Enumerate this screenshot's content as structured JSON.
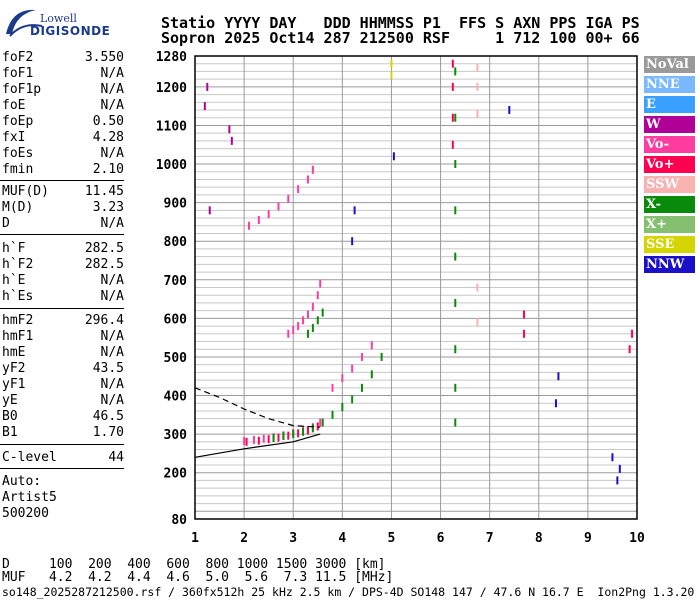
{
  "logo": {
    "word": "Lowell",
    "brand": "DIGISONDE"
  },
  "header": {
    "line1": "Statio YYYY DAY   DDD HHMMSS P1  FFS S AXN PPS IGA PS",
    "line2": "Sopron 2025 Oct14 287 212500 RSF     1 712 100 00+ 66"
  },
  "params": [
    {
      "label": "foF2",
      "value": "3.550"
    },
    {
      "label": "foF1",
      "value": "N/A"
    },
    {
      "label": "foF1p",
      "value": "N/A"
    },
    {
      "label": "foE",
      "value": "N/A"
    },
    {
      "label": "foEp",
      "value": "0.50"
    },
    {
      "label": "fxI",
      "value": "4.28"
    },
    {
      "label": "foEs",
      "value": "N/A"
    },
    {
      "label": "fmin",
      "value": "2.10"
    },
    {
      "label": "MUF(D)",
      "value": "11.45"
    },
    {
      "label": "M(D)",
      "value": "3.23"
    },
    {
      "label": "D",
      "value": "N/A"
    },
    {
      "label": "h`F",
      "value": "282.5"
    },
    {
      "label": "h`F2",
      "value": "282.5"
    },
    {
      "label": "h`E",
      "value": "N/A"
    },
    {
      "label": "h`Es",
      "value": "N/A"
    },
    {
      "label": "hmF2",
      "value": "296.4"
    },
    {
      "label": "hmF1",
      "value": "N/A"
    },
    {
      "label": "hmE",
      "value": "N/A"
    },
    {
      "label": "yF2",
      "value": "43.5"
    },
    {
      "label": "yF1",
      "value": "N/A"
    },
    {
      "label": "yE",
      "value": "N/A"
    },
    {
      "label": "B0",
      "value": "46.5"
    },
    {
      "label": "B1",
      "value": "1.70"
    },
    {
      "label": "C-level",
      "value": "44"
    }
  ],
  "auto": {
    "line1": "Auto:",
    "line2": "Artist5",
    "line3": "500200"
  },
  "legend": [
    {
      "label": "NoVal",
      "color": "#9a9a9a"
    },
    {
      "label": "NNE",
      "color": "#7ab8ff"
    },
    {
      "label": "E",
      "color": "#3aa0ff"
    },
    {
      "label": "W",
      "color": "#b00098"
    },
    {
      "label": "Vo-",
      "color": "#ff3da0"
    },
    {
      "label": "Vo+",
      "color": "#ff0050"
    },
    {
      "label": "SSW",
      "color": "#f7b2b2"
    },
    {
      "label": "X-",
      "color": "#0a8a0a"
    },
    {
      "label": "X+",
      "color": "#84c070"
    },
    {
      "label": "SSE",
      "color": "#d4d400"
    },
    {
      "label": "NNW",
      "color": "#1a10c8"
    }
  ],
  "footer": {
    "d_row": "D     100  200  400  600  800 1000 1500 3000 [km]",
    "muf_row": "MUF   4.2  4.2  4.4  4.6  5.0  5.6  7.3 11.5 [MHz]",
    "info": "so148_2025287212500.rsf / 360fx512h 25 kHz 2.5 km / DPS-4D SO148 147 / 47.6 N 16.7 E  Ion2Png 1.3.20"
  },
  "chart_data": {
    "type": "scatter",
    "title": "",
    "xlabel": "",
    "ylabel": "",
    "xlim": [
      1,
      10
    ],
    "ylim": [
      80,
      1280
    ],
    "x_ticks": [
      1,
      2,
      3,
      4,
      5,
      6,
      7,
      8,
      9,
      10
    ],
    "y_ticks": [
      80,
      200,
      300,
      400,
      500,
      600,
      700,
      800,
      900,
      1000,
      1100,
      1200,
      1280
    ],
    "grid": true,
    "legend_position": "right",
    "series": [
      {
        "color_key": "Vo-",
        "points": [
          [
            2.0,
            282
          ],
          [
            2.2,
            285
          ],
          [
            2.4,
            288
          ],
          [
            2.6,
            292
          ],
          [
            2.8,
            297
          ],
          [
            3.0,
            303
          ],
          [
            3.2,
            310
          ],
          [
            3.4,
            318
          ],
          [
            3.55,
            330
          ]
        ]
      },
      {
        "color_key": "Vo+",
        "points": [
          [
            2.05,
            280
          ],
          [
            2.3,
            283
          ],
          [
            2.5,
            287
          ],
          [
            2.7,
            291
          ],
          [
            2.9,
            296
          ],
          [
            3.1,
            302
          ],
          [
            3.3,
            309
          ],
          [
            3.5,
            320
          ]
        ]
      },
      {
        "color_key": "X-",
        "points": [
          [
            2.6,
            290
          ],
          [
            2.8,
            295
          ],
          [
            3.0,
            300
          ],
          [
            3.2,
            306
          ],
          [
            3.4,
            315
          ],
          [
            3.6,
            330
          ]
        ]
      },
      {
        "color_key": "Vo-",
        "points": [
          [
            2.9,
            560
          ],
          [
            3.0,
            570
          ],
          [
            3.1,
            580
          ],
          [
            3.2,
            595
          ],
          [
            3.3,
            610
          ],
          [
            3.4,
            630
          ],
          [
            3.5,
            660
          ],
          [
            3.55,
            690
          ]
        ]
      },
      {
        "color_key": "X-",
        "points": [
          [
            3.3,
            560
          ],
          [
            3.4,
            575
          ],
          [
            3.5,
            595
          ],
          [
            3.6,
            615
          ]
        ]
      },
      {
        "color_key": "Vo-",
        "points": [
          [
            2.1,
            840
          ],
          [
            2.3,
            855
          ],
          [
            2.5,
            870
          ],
          [
            2.7,
            890
          ],
          [
            2.9,
            910
          ],
          [
            3.1,
            935
          ],
          [
            3.3,
            960
          ],
          [
            3.4,
            985
          ]
        ]
      },
      {
        "color_key": "X-",
        "points": [
          [
            3.8,
            350
          ],
          [
            4.0,
            370
          ],
          [
            4.2,
            390
          ],
          [
            4.4,
            420
          ],
          [
            4.6,
            455
          ],
          [
            4.8,
            500
          ]
        ]
      },
      {
        "color_key": "Vo-",
        "points": [
          [
            3.8,
            420
          ],
          [
            4.0,
            445
          ],
          [
            4.2,
            470
          ],
          [
            4.4,
            500
          ],
          [
            4.6,
            530
          ]
        ]
      },
      {
        "color_key": "X-",
        "points": [
          [
            6.3,
            330
          ],
          [
            6.3,
            420
          ],
          [
            6.3,
            520
          ],
          [
            6.3,
            640
          ],
          [
            6.3,
            760
          ],
          [
            6.3,
            880
          ],
          [
            6.3,
            1000
          ],
          [
            6.3,
            1120
          ],
          [
            6.3,
            1240
          ]
        ]
      },
      {
        "color_key": "Vo+",
        "points": [
          [
            6.25,
            1050
          ],
          [
            6.25,
            1120
          ],
          [
            6.25,
            1200
          ],
          [
            6.25,
            1260
          ]
        ]
      },
      {
        "color_key": "SSW",
        "points": [
          [
            6.75,
            590
          ],
          [
            6.75,
            680
          ],
          [
            6.75,
            1130
          ],
          [
            6.75,
            1200
          ],
          [
            6.75,
            1250
          ]
        ]
      },
      {
        "color_key": "NNW",
        "points": [
          [
            5.05,
            1020
          ],
          [
            4.2,
            800
          ],
          [
            4.25,
            880
          ],
          [
            7.4,
            1140
          ],
          [
            8.35,
            380
          ],
          [
            8.4,
            450
          ],
          [
            9.5,
            240
          ],
          [
            9.6,
            180
          ],
          [
            9.65,
            210
          ]
        ]
      },
      {
        "color_key": "W",
        "points": [
          [
            1.2,
            1150
          ],
          [
            1.25,
            1200
          ],
          [
            1.3,
            880
          ],
          [
            1.7,
            1090
          ],
          [
            1.75,
            1060
          ]
        ]
      },
      {
        "color_key": "Vo+",
        "points": [
          [
            7.7,
            560
          ],
          [
            7.7,
            610
          ],
          [
            9.85,
            520
          ],
          [
            9.9,
            560
          ]
        ]
      },
      {
        "color_key": "SSE",
        "points": [
          [
            5.0,
            1230
          ],
          [
            5.0,
            1260
          ]
        ]
      }
    ],
    "curves": [
      {
        "style": "solid",
        "points": [
          [
            1.0,
            240
          ],
          [
            2.0,
            262
          ],
          [
            3.0,
            280
          ],
          [
            3.55,
            300
          ]
        ]
      },
      {
        "style": "dashed",
        "points": [
          [
            1.0,
            420
          ],
          [
            1.5,
            395
          ],
          [
            2.0,
            365
          ],
          [
            2.5,
            340
          ],
          [
            3.0,
            322
          ],
          [
            3.55,
            318
          ]
        ]
      }
    ]
  }
}
